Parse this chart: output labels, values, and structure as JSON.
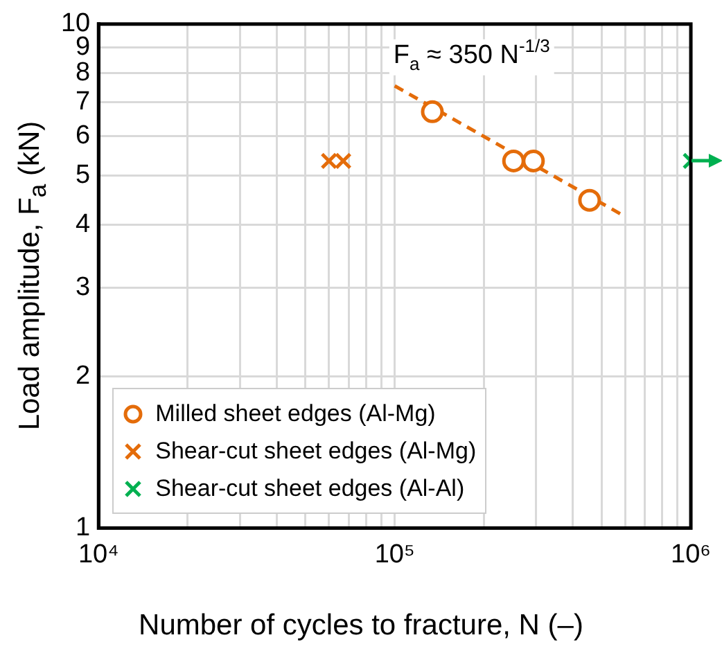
{
  "chart_data": {
    "type": "scatter",
    "xlabel": "Number of cycles to fracture, N (–)",
    "ylabel": "Load amplitude, F$_{a}$ (kN)",
    "log": "xy",
    "grid": true,
    "legend": "bottom left",
    "xlim": [
      10000,
      1000000
    ],
    "xticks": [
      {
        "value": 10000,
        "label": "10⁴"
      },
      {
        "value": 20000,
        "label": null
      },
      {
        "value": 30000,
        "label": null
      },
      {
        "value": 40000,
        "label": null
      },
      {
        "value": 50000,
        "label": null
      },
      {
        "value": 60000,
        "label": null
      },
      {
        "value": 70000,
        "label": null
      },
      {
        "value": 80000,
        "label": null
      },
      {
        "value": 90000,
        "label": null
      },
      {
        "value": 100000,
        "label": "10⁵"
      },
      {
        "value": 200000,
        "label": null
      },
      {
        "value": 300000,
        "label": null
      },
      {
        "value": 400000,
        "label": null
      },
      {
        "value": 500000,
        "label": null
      },
      {
        "value": 600000,
        "label": null
      },
      {
        "value": 700000,
        "label": null
      },
      {
        "value": 800000,
        "label": null
      },
      {
        "value": 900000,
        "label": null
      },
      {
        "value": 1000000,
        "label": "10⁶"
      }
    ],
    "ylim": [
      1,
      10
    ],
    "yticks": [
      1,
      2,
      3,
      4,
      5,
      6,
      7,
      8,
      9,
      10
    ],
    "series": [
      {
        "name": "Milled sheet edges (Al-Mg)",
        "type": "scatter",
        "marker": "circle",
        "color": "#e46c0a",
        "x": [
          134000,
          252000,
          294000,
          455000
        ],
        "values": [
          6.7,
          5.35,
          5.35,
          4.47
        ]
      },
      {
        "name": "Shear-cut sheet edges (Al-Mg)",
        "type": "scatter",
        "marker": "cross",
        "color": "#e46c0a",
        "x": [
          60000,
          67000
        ],
        "values": [
          5.35,
          5.35
        ]
      },
      {
        "name": "Shear-cut sheet edges (Al-Al)",
        "type": "scatter",
        "marker": "cross",
        "color": "#00b050",
        "x": [
          1000000
        ],
        "values": [
          5.35
        ]
      },
      {
        "type": "line",
        "marker": "none",
        "line_style": "dashed",
        "color": "#e46c0a",
        "x": [
          100000,
          600000
        ],
        "values": [
          7.54,
          4.15
        ]
      }
    ],
    "annotations": [
      "F$_{a}$ ≈ 350 N$^{-1/3}$"
    ]
  }
}
